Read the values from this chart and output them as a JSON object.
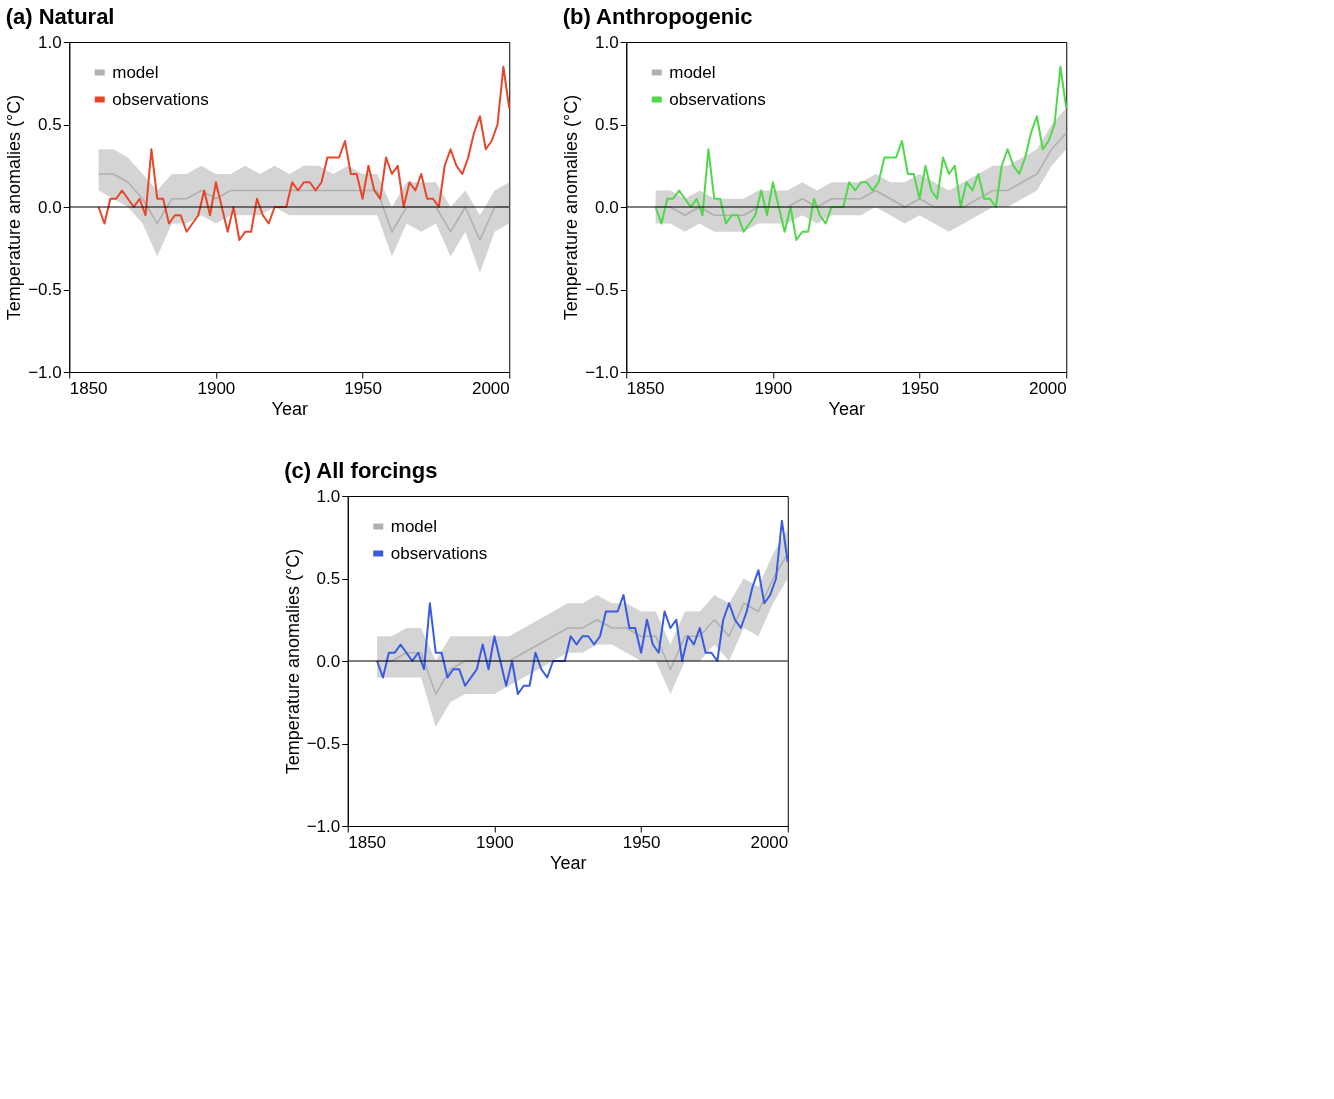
{
  "chart_data": [
    {
      "type": "line",
      "title": "(a) Natural",
      "xlabel": "Year",
      "ylabel": "Temperature anomalies (°C)",
      "xlim": [
        1850,
        2000
      ],
      "xticks": [
        1850,
        1900,
        1950,
        2000
      ],
      "ylim": [
        -1.0,
        1.0
      ],
      "yticks": [
        {
          "value": -1.0,
          "label": "−1.0"
        },
        {
          "value": -0.5,
          "label": "−0.5"
        },
        {
          "value": 0,
          "label": "0.0"
        },
        {
          "value": 0.5,
          "label": "0.5"
        },
        {
          "value": 1.0,
          "label": "1.0"
        }
      ],
      "grid": false,
      "legend": "top left",
      "line_style": "solid",
      "marker": "none",
      "ref_lines": [
        {
          "axis": "y",
          "value": 0,
          "color": "#000000"
        }
      ],
      "series": [
        {
          "name": "model",
          "type": "line",
          "color": "#b0b0b0",
          "x": [
            1860,
            1865,
            1870,
            1875,
            1880,
            1885,
            1890,
            1895,
            1900,
            1905,
            1910,
            1915,
            1920,
            1925,
            1930,
            1935,
            1940,
            1945,
            1950,
            1955,
            1960,
            1965,
            1970,
            1975,
            1980,
            1985,
            1990,
            1995,
            2000
          ],
          "values": [
            0.2,
            0.2,
            0.15,
            0.05,
            -0.1,
            0.05,
            0.05,
            0.1,
            0.05,
            0.1,
            0.1,
            0.1,
            0.1,
            0.1,
            0.1,
            0.1,
            0.1,
            0.1,
            0.1,
            0.1,
            -0.15,
            0.0,
            0.0,
            0.0,
            -0.15,
            0.0,
            -0.2,
            0.0,
            0.0
          ],
          "upper": [
            0.35,
            0.35,
            0.3,
            0.2,
            0.1,
            0.2,
            0.2,
            0.25,
            0.2,
            0.2,
            0.25,
            0.2,
            0.25,
            0.2,
            0.25,
            0.25,
            0.2,
            0.25,
            0.2,
            0.2,
            0.0,
            0.15,
            0.15,
            0.15,
            0.0,
            0.1,
            -0.05,
            0.1,
            0.15
          ],
          "lower": [
            0.1,
            0.05,
            0.0,
            -0.1,
            -0.3,
            -0.1,
            -0.1,
            -0.05,
            -0.1,
            -0.05,
            -0.05,
            -0.05,
            0.0,
            -0.05,
            -0.05,
            -0.05,
            -0.05,
            -0.05,
            -0.05,
            -0.05,
            -0.3,
            -0.1,
            -0.15,
            -0.1,
            -0.3,
            -0.15,
            -0.4,
            -0.15,
            -0.1
          ]
        },
        {
          "name": "observations",
          "type": "line",
          "color": "#e8462a",
          "x": [
            1860,
            1862,
            1864,
            1866,
            1868,
            1870,
            1872,
            1874,
            1876,
            1878,
            1880,
            1882,
            1884,
            1886,
            1888,
            1890,
            1892,
            1894,
            1896,
            1898,
            1900,
            1902,
            1904,
            1906,
            1908,
            1910,
            1912,
            1914,
            1916,
            1918,
            1920,
            1922,
            1924,
            1926,
            1928,
            1930,
            1932,
            1934,
            1936,
            1938,
            1940,
            1942,
            1944,
            1946,
            1948,
            1950,
            1952,
            1954,
            1956,
            1958,
            1960,
            1962,
            1964,
            1966,
            1968,
            1970,
            1972,
            1974,
            1976,
            1978,
            1980,
            1982,
            1984,
            1986,
            1988,
            1990,
            1992,
            1994,
            1996,
            1998,
            2000
          ],
          "values": [
            0.0,
            -0.1,
            0.05,
            0.05,
            0.1,
            0.05,
            0.0,
            0.05,
            -0.05,
            0.35,
            0.05,
            0.05,
            -0.1,
            -0.05,
            -0.05,
            -0.15,
            -0.1,
            -0.05,
            0.1,
            -0.05,
            0.15,
            0.0,
            -0.15,
            0.0,
            -0.2,
            -0.15,
            -0.15,
            0.05,
            -0.05,
            -0.1,
            0.0,
            0.0,
            0.0,
            0.15,
            0.1,
            0.15,
            0.15,
            0.1,
            0.15,
            0.3,
            0.3,
            0.3,
            0.4,
            0.2,
            0.2,
            0.05,
            0.25,
            0.1,
            0.05,
            0.3,
            0.2,
            0.25,
            0.0,
            0.15,
            0.1,
            0.2,
            0.05,
            0.05,
            0.0,
            0.25,
            0.35,
            0.25,
            0.2,
            0.3,
            0.45,
            0.55,
            0.35,
            0.4,
            0.5,
            0.85,
            0.6
          ]
        }
      ]
    },
    {
      "type": "line",
      "title": "(b) Anthropogenic",
      "xlabel": "Year",
      "ylabel": "Temperature anomalies (°C)",
      "xlim": [
        1850,
        2000
      ],
      "xticks": [
        1850,
        1900,
        1950,
        2000
      ],
      "ylim": [
        -1.0,
        1.0
      ],
      "yticks": [
        {
          "value": -1.0,
          "label": "−1.0"
        },
        {
          "value": -0.5,
          "label": "−0.5"
        },
        {
          "value": 0,
          "label": "0.0"
        },
        {
          "value": 0.5,
          "label": "0.5"
        },
        {
          "value": 1.0,
          "label": "1.0"
        }
      ],
      "grid": false,
      "legend": "top left",
      "line_style": "solid",
      "marker": "none",
      "ref_lines": [
        {
          "axis": "y",
          "value": 0,
          "color": "#000000"
        }
      ],
      "series": [
        {
          "name": "model",
          "type": "line",
          "color": "#b0b0b0",
          "x": [
            1860,
            1865,
            1870,
            1875,
            1880,
            1885,
            1890,
            1895,
            1900,
            1905,
            1910,
            1915,
            1920,
            1925,
            1930,
            1935,
            1940,
            1945,
            1950,
            1955,
            1960,
            1965,
            1970,
            1975,
            1980,
            1985,
            1990,
            1995,
            2000
          ],
          "values": [
            0.0,
            0.0,
            -0.05,
            0.0,
            -0.05,
            -0.05,
            -0.05,
            0.0,
            0.0,
            0.0,
            0.05,
            0.0,
            0.05,
            0.05,
            0.05,
            0.1,
            0.05,
            0.0,
            0.05,
            0.0,
            0.0,
            0.0,
            0.05,
            0.1,
            0.1,
            0.15,
            0.2,
            0.35,
            0.45
          ],
          "upper": [
            0.1,
            0.1,
            0.05,
            0.1,
            0.05,
            0.05,
            0.05,
            0.1,
            0.1,
            0.1,
            0.15,
            0.1,
            0.15,
            0.15,
            0.15,
            0.2,
            0.15,
            0.15,
            0.2,
            0.15,
            0.1,
            0.15,
            0.2,
            0.25,
            0.25,
            0.3,
            0.35,
            0.5,
            0.6
          ],
          "lower": [
            -0.1,
            -0.1,
            -0.15,
            -0.1,
            -0.15,
            -0.15,
            -0.15,
            -0.1,
            -0.1,
            -0.1,
            -0.05,
            -0.1,
            -0.05,
            -0.05,
            -0.05,
            0.0,
            -0.05,
            -0.1,
            -0.05,
            -0.1,
            -0.15,
            -0.1,
            -0.05,
            0.0,
            0.0,
            0.05,
            0.1,
            0.25,
            0.35
          ]
        },
        {
          "name": "observations",
          "type": "line",
          "color": "#4fd84a",
          "x": [
            1860,
            1862,
            1864,
            1866,
            1868,
            1870,
            1872,
            1874,
            1876,
            1878,
            1880,
            1882,
            1884,
            1886,
            1888,
            1890,
            1892,
            1894,
            1896,
            1898,
            1900,
            1902,
            1904,
            1906,
            1908,
            1910,
            1912,
            1914,
            1916,
            1918,
            1920,
            1922,
            1924,
            1926,
            1928,
            1930,
            1932,
            1934,
            1936,
            1938,
            1940,
            1942,
            1944,
            1946,
            1948,
            1950,
            1952,
            1954,
            1956,
            1958,
            1960,
            1962,
            1964,
            1966,
            1968,
            1970,
            1972,
            1974,
            1976,
            1978,
            1980,
            1982,
            1984,
            1986,
            1988,
            1990,
            1992,
            1994,
            1996,
            1998,
            2000
          ],
          "values": [
            0.0,
            -0.1,
            0.05,
            0.05,
            0.1,
            0.05,
            0.0,
            0.05,
            -0.05,
            0.35,
            0.05,
            0.05,
            -0.1,
            -0.05,
            -0.05,
            -0.15,
            -0.1,
            -0.05,
            0.1,
            -0.05,
            0.15,
            0.0,
            -0.15,
            0.0,
            -0.2,
            -0.15,
            -0.15,
            0.05,
            -0.05,
            -0.1,
            0.0,
            0.0,
            0.0,
            0.15,
            0.1,
            0.15,
            0.15,
            0.1,
            0.15,
            0.3,
            0.3,
            0.3,
            0.4,
            0.2,
            0.2,
            0.05,
            0.25,
            0.1,
            0.05,
            0.3,
            0.2,
            0.25,
            0.0,
            0.15,
            0.1,
            0.2,
            0.05,
            0.05,
            0.0,
            0.25,
            0.35,
            0.25,
            0.2,
            0.3,
            0.45,
            0.55,
            0.35,
            0.4,
            0.5,
            0.85,
            0.6
          ]
        }
      ]
    },
    {
      "type": "line",
      "title": "(c) All forcings",
      "xlabel": "Year",
      "ylabel": "Temperature anomalies (°C)",
      "xlim": [
        1850,
        2000
      ],
      "xticks": [
        1850,
        1900,
        1950,
        2000
      ],
      "ylim": [
        -1.0,
        1.0
      ],
      "yticks": [
        {
          "value": -1.0,
          "label": "−1.0"
        },
        {
          "value": -0.5,
          "label": "−0.5"
        },
        {
          "value": 0,
          "label": "0.0"
        },
        {
          "value": 0.5,
          "label": "0.5"
        },
        {
          "value": 1.0,
          "label": "1.0"
        }
      ],
      "grid": false,
      "legend": "top left",
      "line_style": "solid",
      "marker": "none",
      "ref_lines": [
        {
          "axis": "y",
          "value": 0,
          "color": "#000000"
        }
      ],
      "series": [
        {
          "name": "model",
          "type": "line",
          "color": "#b0b0b0",
          "x": [
            1860,
            1865,
            1870,
            1875,
            1880,
            1885,
            1890,
            1895,
            1900,
            1905,
            1910,
            1915,
            1920,
            1925,
            1930,
            1935,
            1940,
            1945,
            1950,
            1955,
            1960,
            1965,
            1970,
            1975,
            1980,
            1985,
            1990,
            1995,
            2000
          ],
          "values": [
            0.0,
            0.0,
            0.05,
            0.05,
            -0.2,
            -0.05,
            0.0,
            0.0,
            0.0,
            0.0,
            0.05,
            0.1,
            0.15,
            0.2,
            0.2,
            0.25,
            0.2,
            0.2,
            0.15,
            0.15,
            -0.05,
            0.15,
            0.15,
            0.25,
            0.15,
            0.35,
            0.3,
            0.5,
            0.65
          ],
          "upper": [
            0.15,
            0.15,
            0.2,
            0.2,
            0.0,
            0.15,
            0.15,
            0.15,
            0.15,
            0.15,
            0.2,
            0.25,
            0.3,
            0.35,
            0.35,
            0.4,
            0.35,
            0.35,
            0.3,
            0.3,
            0.1,
            0.3,
            0.3,
            0.4,
            0.35,
            0.5,
            0.45,
            0.65,
            0.8
          ],
          "lower": [
            -0.1,
            -0.1,
            -0.1,
            -0.1,
            -0.4,
            -0.25,
            -0.2,
            -0.2,
            -0.2,
            -0.15,
            -0.1,
            -0.05,
            0.0,
            0.05,
            0.05,
            0.1,
            0.1,
            0.05,
            0.0,
            0.0,
            -0.2,
            0.0,
            0.0,
            0.1,
            0.0,
            0.2,
            0.15,
            0.35,
            0.5
          ]
        },
        {
          "name": "observations",
          "type": "line",
          "color": "#3a5be0",
          "x": [
            1860,
            1862,
            1864,
            1866,
            1868,
            1870,
            1872,
            1874,
            1876,
            1878,
            1880,
            1882,
            1884,
            1886,
            1888,
            1890,
            1892,
            1894,
            1896,
            1898,
            1900,
            1902,
            1904,
            1906,
            1908,
            1910,
            1912,
            1914,
            1916,
            1918,
            1920,
            1922,
            1924,
            1926,
            1928,
            1930,
            1932,
            1934,
            1936,
            1938,
            1940,
            1942,
            1944,
            1946,
            1948,
            1950,
            1952,
            1954,
            1956,
            1958,
            1960,
            1962,
            1964,
            1966,
            1968,
            1970,
            1972,
            1974,
            1976,
            1978,
            1980,
            1982,
            1984,
            1986,
            1988,
            1990,
            1992,
            1994,
            1996,
            1998,
            2000
          ],
          "values": [
            0.0,
            -0.1,
            0.05,
            0.05,
            0.1,
            0.05,
            0.0,
            0.05,
            -0.05,
            0.35,
            0.05,
            0.05,
            -0.1,
            -0.05,
            -0.05,
            -0.15,
            -0.1,
            -0.05,
            0.1,
            -0.05,
            0.15,
            0.0,
            -0.15,
            0.0,
            -0.2,
            -0.15,
            -0.15,
            0.05,
            -0.05,
            -0.1,
            0.0,
            0.0,
            0.0,
            0.15,
            0.1,
            0.15,
            0.15,
            0.1,
            0.15,
            0.3,
            0.3,
            0.3,
            0.4,
            0.2,
            0.2,
            0.05,
            0.25,
            0.1,
            0.05,
            0.3,
            0.2,
            0.25,
            0.0,
            0.15,
            0.1,
            0.2,
            0.05,
            0.05,
            0.0,
            0.25,
            0.35,
            0.25,
            0.2,
            0.3,
            0.45,
            0.55,
            0.35,
            0.4,
            0.5,
            0.85,
            0.6
          ]
        }
      ]
    }
  ]
}
